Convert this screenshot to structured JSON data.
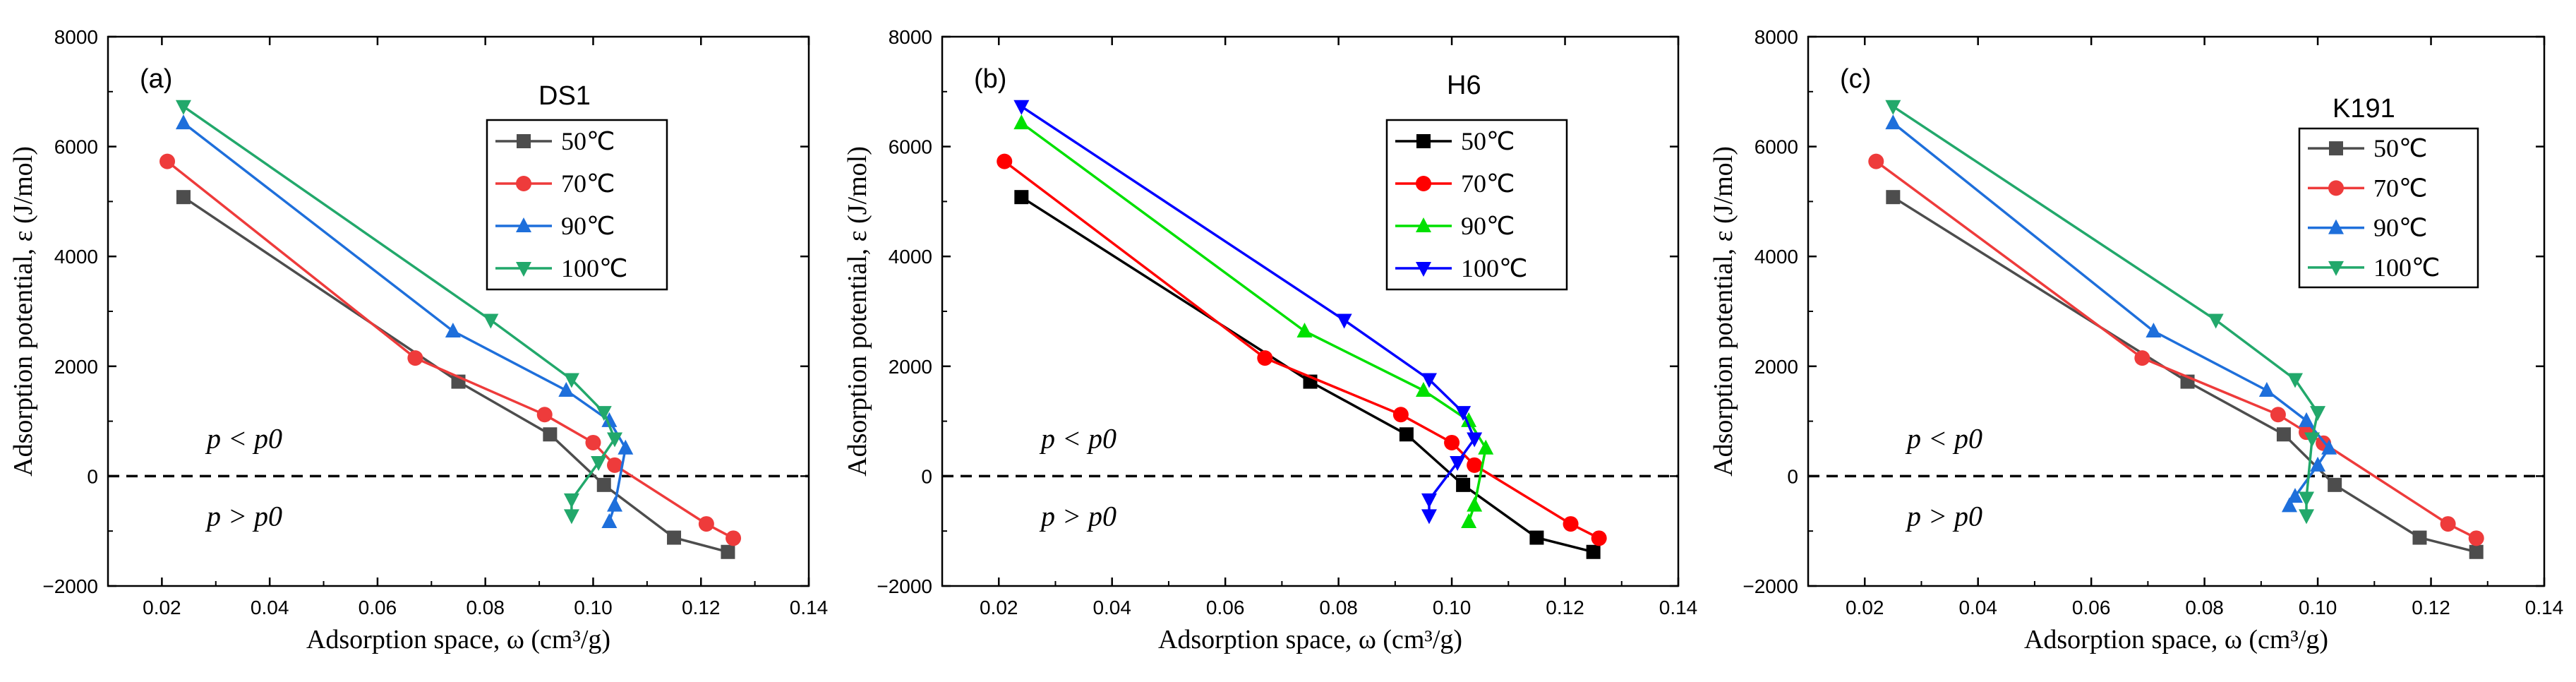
{
  "figure": {
    "panel_count": 3
  },
  "chart_data": [
    {
      "type": "line",
      "tag": "(a)",
      "title": "DS1",
      "xlabel": "Adsorption space, ω (cm³/g)",
      "ylabel": "Adsorption potential, ε (J/mol)",
      "xlim": [
        0.01,
        0.14
      ],
      "ylim": [
        -2000,
        8000
      ],
      "xticks": [
        0.02,
        0.04,
        0.06,
        0.08,
        0.1,
        0.12,
        0.14
      ],
      "xtick_labels": [
        "0.02",
        "0.04",
        "0.06",
        "0.08",
        "0.10",
        "0.12",
        "0.14"
      ],
      "yticks": [
        -2000,
        0,
        2000,
        4000,
        6000,
        8000
      ],
      "ytick_labels": [
        "−2000",
        "0",
        "2000",
        "4000",
        "6000",
        "8000"
      ],
      "reference_line": {
        "y": 0,
        "style": "dashed"
      },
      "region_labels": {
        "above": "p < p0",
        "below": "p > p0"
      },
      "legend_location": "top-right",
      "series": [
        {
          "name": "50℃",
          "color": "#4d4d4d",
          "marker": "square",
          "x": [
            0.024,
            0.075,
            0.092,
            0.102,
            0.115,
            0.125
          ],
          "y": [
            5080,
            1720,
            760,
            -160,
            -1120,
            -1380
          ]
        },
        {
          "name": "70℃",
          "color": "#ee3b3b",
          "marker": "circle",
          "x": [
            0.021,
            0.067,
            0.091,
            0.1,
            0.104,
            0.121,
            0.126
          ],
          "y": [
            5730,
            2150,
            1120,
            610,
            200,
            -870,
            -1130
          ]
        },
        {
          "name": "90℃",
          "color": "#1e6fdb",
          "marker": "triangle-up",
          "x": [
            0.024,
            0.074,
            0.095,
            0.103,
            0.106,
            0.104,
            0.103
          ],
          "y": [
            6430,
            2640,
            1560,
            1010,
            510,
            -530,
            -830
          ]
        },
        {
          "name": "100℃",
          "color": "#22a86b",
          "marker": "triangle-down",
          "x": [
            0.024,
            0.081,
            0.096,
            0.102,
            0.104,
            0.101,
            0.096,
            0.096
          ],
          "y": [
            6730,
            2840,
            1760,
            1160,
            680,
            250,
            -430,
            -720
          ]
        }
      ]
    },
    {
      "type": "line",
      "tag": "(b)",
      "title": "H6",
      "xlabel": "Adsorption space, ω (cm³/g)",
      "ylabel": "Adsorption potential, ε (J/mol)",
      "xlim": [
        0.01,
        0.14
      ],
      "ylim": [
        -2000,
        8000
      ],
      "xticks": [
        0.02,
        0.04,
        0.06,
        0.08,
        0.1,
        0.12,
        0.14
      ],
      "xtick_labels": [
        "0.02",
        "0.04",
        "0.06",
        "0.08",
        "0.10",
        "0.12",
        "0.14"
      ],
      "yticks": [
        -2000,
        0,
        2000,
        4000,
        6000,
        8000
      ],
      "ytick_labels": [
        "−2000",
        "0",
        "2000",
        "4000",
        "6000",
        "8000"
      ],
      "reference_line": {
        "y": 0,
        "style": "dashed"
      },
      "region_labels": {
        "above": "p < p0",
        "below": "p > p0"
      },
      "legend_location": "top-right",
      "series": [
        {
          "name": "50℃",
          "color": "#000000",
          "marker": "square",
          "x": [
            0.024,
            0.075,
            0.092,
            0.102,
            0.115,
            0.125
          ],
          "y": [
            5080,
            1720,
            760,
            -160,
            -1120,
            -1380
          ]
        },
        {
          "name": "70℃",
          "color": "#ff0000",
          "marker": "circle",
          "x": [
            0.021,
            0.067,
            0.091,
            0.1,
            0.104,
            0.121,
            0.126
          ],
          "y": [
            5730,
            2150,
            1120,
            610,
            200,
            -870,
            -1130
          ]
        },
        {
          "name": "90℃",
          "color": "#00e000",
          "marker": "triangle-up",
          "x": [
            0.024,
            0.074,
            0.095,
            0.103,
            0.106,
            0.104,
            0.103
          ],
          "y": [
            6430,
            2640,
            1560,
            1010,
            510,
            -530,
            -830
          ]
        },
        {
          "name": "100℃",
          "color": "#0000ff",
          "marker": "triangle-down",
          "x": [
            0.024,
            0.081,
            0.096,
            0.102,
            0.104,
            0.101,
            0.096,
            0.096
          ],
          "y": [
            6730,
            2840,
            1760,
            1160,
            680,
            250,
            -430,
            -720
          ]
        }
      ]
    },
    {
      "type": "line",
      "tag": "(c)",
      "title": "K191",
      "xlabel": "Adsorption space, ω (cm³/g)",
      "ylabel": "Adsorption potential, ε (J/mol)",
      "xlim": [
        0.01,
        0.14
      ],
      "ylim": [
        -2000,
        8000
      ],
      "xticks": [
        0.02,
        0.04,
        0.06,
        0.08,
        0.1,
        0.12,
        0.14
      ],
      "xtick_labels": [
        "0.02",
        "0.04",
        "0.06",
        "0.08",
        "0.10",
        "0.12",
        "0.14"
      ],
      "yticks": [
        -2000,
        0,
        2000,
        4000,
        6000,
        8000
      ],
      "ytick_labels": [
        "−2000",
        "0",
        "2000",
        "4000",
        "6000",
        "8000"
      ],
      "reference_line": {
        "y": 0,
        "style": "dashed"
      },
      "region_labels": {
        "above": "p < p0",
        "below": "p > p0"
      },
      "legend_location": "top-right",
      "series": [
        {
          "name": "50℃",
          "color": "#4d4d4d",
          "marker": "square",
          "x": [
            0.025,
            0.077,
            0.094,
            0.103,
            0.118,
            0.128
          ],
          "y": [
            5080,
            1720,
            760,
            -160,
            -1120,
            -1380
          ]
        },
        {
          "name": "70℃",
          "color": "#ee3b3b",
          "marker": "circle",
          "x": [
            0.022,
            0.069,
            0.093,
            0.098,
            0.101,
            0.123,
            0.128
          ],
          "y": [
            5730,
            2150,
            1120,
            800,
            600,
            -870,
            -1130
          ]
        },
        {
          "name": "90℃",
          "color": "#1e6fdb",
          "marker": "triangle-up",
          "x": [
            0.025,
            0.071,
            0.091,
            0.098,
            0.102,
            0.1,
            0.096,
            0.095
          ],
          "y": [
            6430,
            2640,
            1560,
            1010,
            510,
            200,
            -370,
            -540
          ]
        },
        {
          "name": "100℃",
          "color": "#22a86b",
          "marker": "triangle-down",
          "x": [
            0.025,
            0.082,
            0.096,
            0.1,
            0.099,
            0.098,
            0.098
          ],
          "y": [
            6730,
            2840,
            1760,
            1160,
            680,
            -400,
            -720
          ]
        }
      ]
    }
  ]
}
